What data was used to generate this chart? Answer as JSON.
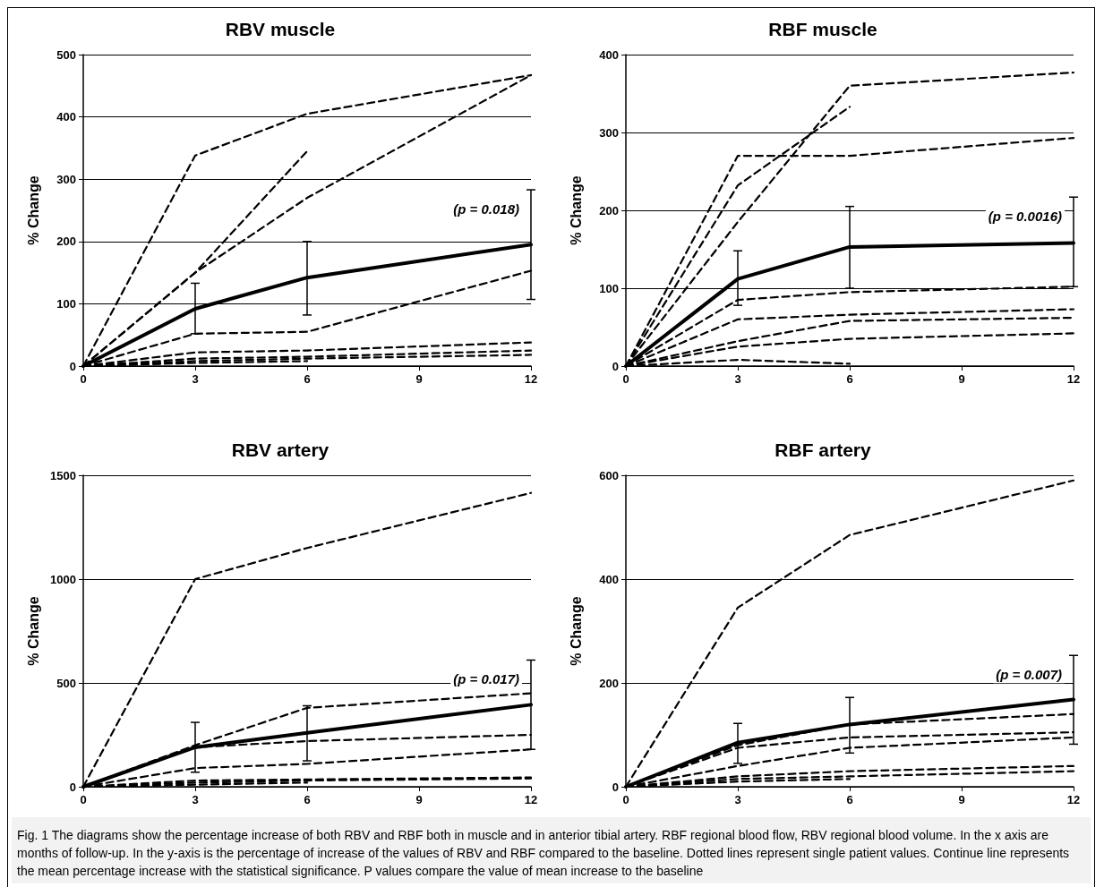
{
  "chart_data": [
    {
      "type": "line",
      "title": "RBV muscle",
      "ylabel": "% Change",
      "x": [
        0,
        3,
        6,
        12
      ],
      "xlim": [
        0,
        12
      ],
      "xticks": [
        0,
        3,
        6,
        9,
        12
      ],
      "ylim": [
        0,
        500
      ],
      "yticks": [
        0,
        100,
        200,
        300,
        400,
        500
      ],
      "grid": "y",
      "marker": "none",
      "annotations": [
        "(p = 0.018)"
      ],
      "series": [
        {
          "color": "#000000",
          "line_style": "dashed",
          "values": [
            0,
            338,
            405,
            467
          ]
        },
        {
          "color": "#000000",
          "line_style": "dashed",
          "values": [
            0,
            150,
            345,
            null
          ]
        },
        {
          "color": "#000000",
          "line_style": "dashed",
          "values": [
            0,
            150,
            270,
            467
          ]
        },
        {
          "color": "#000000",
          "line_style": "dashed",
          "values": [
            0,
            52,
            55,
            153
          ]
        },
        {
          "color": "#000000",
          "line_style": "dashed",
          "values": [
            0,
            22,
            25,
            38
          ]
        },
        {
          "color": "#000000",
          "line_style": "dashed",
          "values": [
            0,
            12,
            15,
            25
          ]
        },
        {
          "color": "#000000",
          "line_style": "dashed",
          "values": [
            0,
            8,
            12,
            18
          ]
        },
        {
          "color": "#000000",
          "line_style": "dashed",
          "values": [
            0,
            5,
            8,
            null
          ]
        },
        {
          "color": "#000000",
          "line_style": "solid",
          "values": [
            0,
            92,
            142,
            195
          ],
          "errors": [
            null,
            [
              52,
              133
            ],
            [
              82,
              200
            ],
            [
              107,
              283
            ]
          ]
        }
      ]
    },
    {
      "type": "line",
      "title": "RBF muscle",
      "ylabel": "% Change",
      "x": [
        0,
        3,
        6,
        12
      ],
      "xlim": [
        0,
        12
      ],
      "xticks": [
        0,
        3,
        6,
        9,
        12
      ],
      "ylim": [
        0,
        400
      ],
      "yticks": [
        0,
        100,
        200,
        300,
        400
      ],
      "grid": "y",
      "marker": "none",
      "annotations": [
        "(p = 0.0016)"
      ],
      "series": [
        {
          "color": "#000000",
          "line_style": "dashed",
          "values": [
            0,
            270,
            270,
            293
          ]
        },
        {
          "color": "#000000",
          "line_style": "dashed",
          "values": [
            0,
            232,
            333,
            null
          ]
        },
        {
          "color": "#000000",
          "line_style": "dashed",
          "values": [
            0,
            185,
            360,
            377
          ]
        },
        {
          "color": "#000000",
          "line_style": "dashed",
          "values": [
            0,
            85,
            95,
            102
          ]
        },
        {
          "color": "#000000",
          "line_style": "dashed",
          "values": [
            0,
            60,
            66,
            73
          ]
        },
        {
          "color": "#000000",
          "line_style": "dashed",
          "values": [
            0,
            32,
            58,
            62
          ]
        },
        {
          "color": "#000000",
          "line_style": "dashed",
          "values": [
            0,
            25,
            35,
            42
          ]
        },
        {
          "color": "#000000",
          "line_style": "dashed",
          "values": [
            0,
            8,
            3,
            null
          ]
        },
        {
          "color": "#000000",
          "line_style": "solid",
          "values": [
            0,
            112,
            153,
            158
          ],
          "errors": [
            null,
            [
              78,
              148
            ],
            [
              100,
              205
            ],
            [
              102,
              217
            ]
          ]
        }
      ]
    },
    {
      "type": "line",
      "title": "RBV artery",
      "ylabel": "% Change",
      "x": [
        0,
        3,
        6,
        12
      ],
      "xlim": [
        0,
        12
      ],
      "xticks": [
        0,
        3,
        6,
        9,
        12
      ],
      "ylim": [
        0,
        1500
      ],
      "yticks": [
        0,
        500,
        1000,
        1500
      ],
      "grid": "y",
      "marker": "none",
      "annotations": [
        "(p = 0.017)"
      ],
      "series": [
        {
          "color": "#000000",
          "line_style": "dashed",
          "values": [
            0,
            1000,
            1150,
            1415
          ]
        },
        {
          "color": "#000000",
          "line_style": "dashed",
          "values": [
            0,
            200,
            380,
            450
          ]
        },
        {
          "color": "#000000",
          "line_style": "dashed",
          "values": [
            0,
            190,
            220,
            250
          ]
        },
        {
          "color": "#000000",
          "line_style": "dashed",
          "values": [
            0,
            90,
            110,
            180
          ]
        },
        {
          "color": "#000000",
          "line_style": "dashed",
          "values": [
            0,
            30,
            35,
            45
          ]
        },
        {
          "color": "#000000",
          "line_style": "dashed",
          "values": [
            0,
            20,
            30,
            40
          ]
        },
        {
          "color": "#000000",
          "line_style": "dashed",
          "values": [
            0,
            10,
            20,
            null
          ]
        },
        {
          "color": "#000000",
          "line_style": "solid",
          "values": [
            0,
            190,
            260,
            395
          ],
          "errors": [
            null,
            [
              70,
              310
            ],
            [
              125,
              390
            ],
            [
              180,
              610
            ]
          ]
        }
      ]
    },
    {
      "type": "line",
      "title": "RBF artery",
      "ylabel": "% Change",
      "x": [
        0,
        3,
        6,
        12
      ],
      "xlim": [
        0,
        12
      ],
      "xticks": [
        0,
        3,
        6,
        9,
        12
      ],
      "ylim": [
        0,
        600
      ],
      "yticks": [
        0,
        200,
        400,
        600
      ],
      "grid": "y",
      "marker": "none",
      "annotations": [
        "(p = 0.007)",
        "Fig. 1  The diagrams show the percentage increase of both RBV and RBF both in muscle and in anterior tibial artery. RBF regional blood flow, RBV regional blood volume. In the x axis are months of follow-up. In the y-axis is the percentage of increase of the values of RBV and RBF compared to the baseline. Dotted lines represent single patient values. Continue line represents the mean percentage increase with the statistical significance. P values compare the value of mean increase to the baseline"
      ],
      "series": [
        {
          "color": "#000000",
          "line_style": "dashed",
          "values": [
            0,
            345,
            485,
            590
          ]
        },
        {
          "color": "#000000",
          "line_style": "dashed",
          "values": [
            0,
            80,
            120,
            140
          ]
        },
        {
          "color": "#000000",
          "line_style": "dashed",
          "values": [
            0,
            75,
            95,
            105
          ]
        },
        {
          "color": "#000000",
          "line_style": "dashed",
          "values": [
            0,
            40,
            75,
            95
          ]
        },
        {
          "color": "#000000",
          "line_style": "dashed",
          "values": [
            0,
            20,
            30,
            40
          ]
        },
        {
          "color": "#000000",
          "line_style": "dashed",
          "values": [
            0,
            15,
            20,
            30
          ]
        },
        {
          "color": "#000000",
          "line_style": "dashed",
          "values": [
            0,
            10,
            15,
            null
          ]
        },
        {
          "color": "#000000",
          "line_style": "solid",
          "values": [
            0,
            85,
            120,
            168
          ],
          "errors": [
            null,
            [
              45,
              122
            ],
            [
              65,
              172
            ],
            [
              82,
              253
            ]
          ]
        }
      ]
    }
  ]
}
